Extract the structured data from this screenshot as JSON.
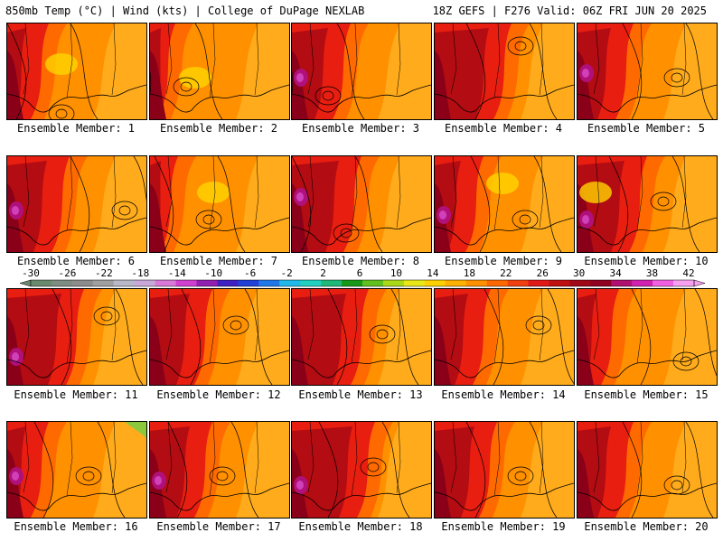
{
  "header": {
    "left": "850mb Temp (°C) | Wind (kts) | College of DuPage NEXLAB",
    "right": "18Z GEFS | F276 Valid: 06Z FRI JUN 20 2025"
  },
  "label_prefix": "Ensemble Member: ",
  "members": [
    {
      "id": 1,
      "label": "Ensemble Member: 1"
    },
    {
      "id": 2,
      "label": "Ensemble Member: 2"
    },
    {
      "id": 3,
      "label": "Ensemble Member: 3"
    },
    {
      "id": 4,
      "label": "Ensemble Member: 4"
    },
    {
      "id": 5,
      "label": "Ensemble Member: 5"
    },
    {
      "id": 6,
      "label": "Ensemble Member: 6"
    },
    {
      "id": 7,
      "label": "Ensemble Member: 7"
    },
    {
      "id": 8,
      "label": "Ensemble Member: 8"
    },
    {
      "id": 9,
      "label": "Ensemble Member: 9"
    },
    {
      "id": 10,
      "label": "Ensemble Member: 10"
    },
    {
      "id": 11,
      "label": "Ensemble Member: 11"
    },
    {
      "id": 12,
      "label": "Ensemble Member: 12"
    },
    {
      "id": 13,
      "label": "Ensemble Member: 13"
    },
    {
      "id": 14,
      "label": "Ensemble Member: 14"
    },
    {
      "id": 15,
      "label": "Ensemble Member: 15"
    },
    {
      "id": 16,
      "label": "Ensemble Member: 16"
    },
    {
      "id": 17,
      "label": "Ensemble Member: 17"
    },
    {
      "id": 18,
      "label": "Ensemble Member: 18"
    },
    {
      "id": 19,
      "label": "Ensemble Member: 19"
    },
    {
      "id": 20,
      "label": "Ensemble Member: 20"
    }
  ],
  "colorbar": {
    "labels": [
      "-30",
      "-26",
      "-22",
      "-18",
      "-14",
      "-10",
      "-6",
      "-2",
      "2",
      "6",
      "10",
      "14",
      "18",
      "22",
      "26",
      "30",
      "34",
      "38",
      "42"
    ],
    "colors": [
      "#6a8a6e",
      "#7e8c82",
      "#8c8c8c",
      "#a0a0a0",
      "#b8b8c8",
      "#c8a8d8",
      "#d878d8",
      "#d040d0",
      "#9020b0",
      "#4020c0",
      "#2040d8",
      "#2078e8",
      "#20b8e8",
      "#20d0c0",
      "#20b878",
      "#189818",
      "#60c020",
      "#a8d818",
      "#e8e818",
      "#ffd000",
      "#ffb000",
      "#ff9000",
      "#ff6800",
      "#f04010",
      "#e01818",
      "#c01010",
      "#a00818",
      "#900020",
      "#b01070",
      "#d020b0",
      "#f060e0",
      "#f8a0f0"
    ],
    "colors_note_free": true
  },
  "palette": {
    "cool": "#ffb020",
    "mid": "#ff9000",
    "warm": "#ff6a00",
    "hot": "#e81e10",
    "vhot": "#b30c12",
    "xhot": "#8a0018",
    "magenta": "#b0107a",
    "pink": "#d040b8",
    "yellow": "#ffd400",
    "green": "#8cc83c",
    "line": "#000000"
  }
}
